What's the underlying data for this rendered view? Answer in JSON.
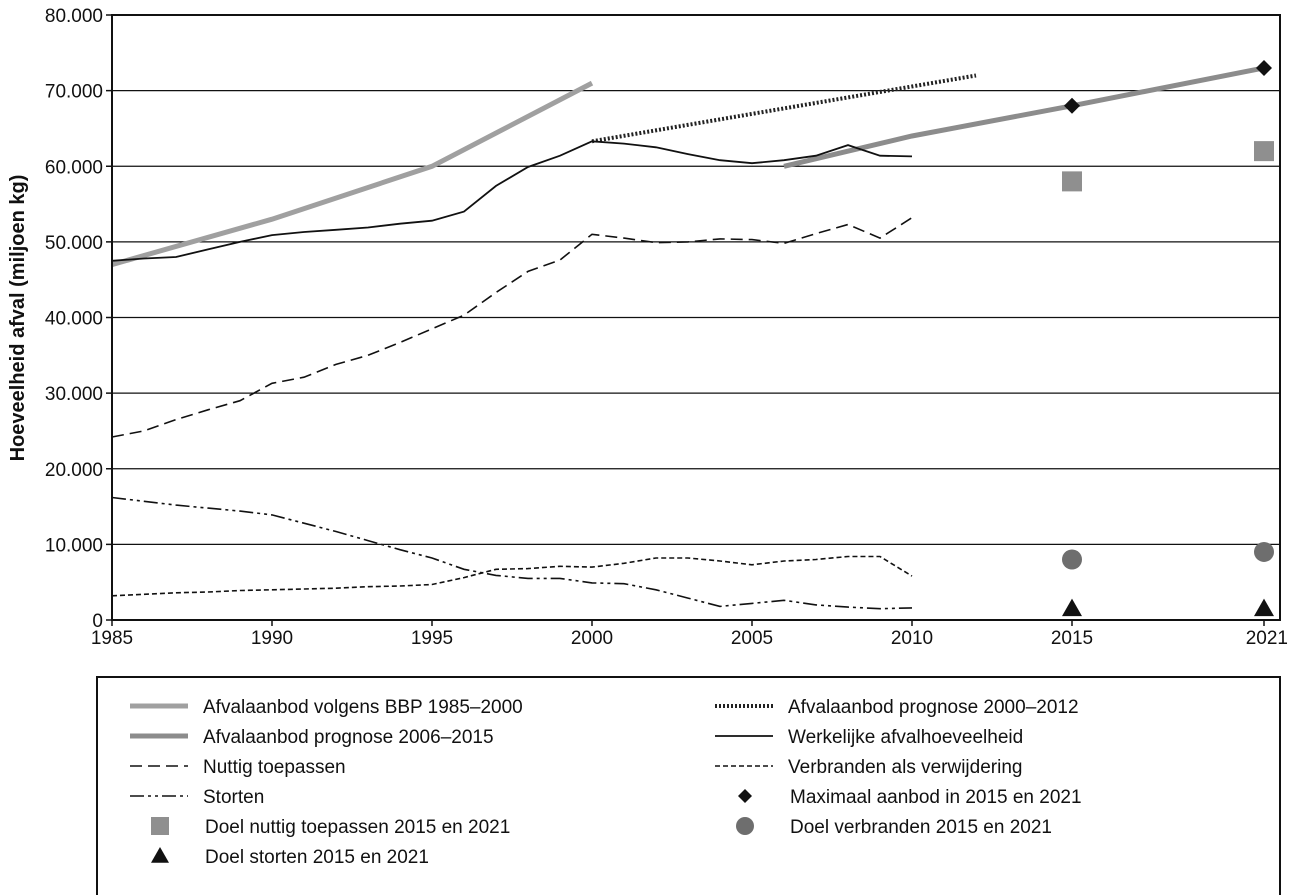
{
  "chart_data": {
    "type": "line",
    "title": "",
    "xlabel": "",
    "ylabel": "Hoeveelheid afval (miljoen kg)",
    "x_ticks": [
      "1985",
      "1990",
      "1995",
      "2000",
      "2005",
      "2010",
      "2015",
      "2021"
    ],
    "y_ticks": [
      "0",
      "10.000",
      "20.000",
      "30.000",
      "40.000",
      "50.000",
      "60.000",
      "70.000",
      "80.000"
    ],
    "ylim": [
      0,
      80000
    ],
    "grid": "horizontal",
    "legend_position": "bottom",
    "series": [
      {
        "name": "Afvalaanbod volgens BBP 1985–2000",
        "style": "thick-solid",
        "color": "#a0a0a0",
        "points": [
          [
            1985,
            47000
          ],
          [
            1990,
            53000
          ],
          [
            1995,
            60000
          ],
          [
            2000,
            71000
          ]
        ]
      },
      {
        "name": "Afvalaanbod prognose 2006–2015",
        "style": "thick-solid",
        "color": "#8c8c8c",
        "points": [
          [
            2006,
            60000
          ],
          [
            2010,
            64000
          ],
          [
            2015,
            68000
          ],
          [
            2021,
            73000
          ]
        ]
      },
      {
        "name": "Nuttig toepassen",
        "style": "dashed",
        "color": "#111111",
        "points": [
          [
            1985,
            24200
          ],
          [
            1986,
            25000
          ],
          [
            1987,
            26500
          ],
          [
            1988,
            27800
          ],
          [
            1989,
            29000
          ],
          [
            1990,
            31300
          ],
          [
            1991,
            32100
          ],
          [
            1992,
            33800
          ],
          [
            1993,
            35000
          ],
          [
            1994,
            36700
          ],
          [
            1995,
            38500
          ],
          [
            1996,
            40300
          ],
          [
            1997,
            43300
          ],
          [
            1998,
            46100
          ],
          [
            1999,
            47600
          ],
          [
            2000,
            51000
          ],
          [
            2001,
            50500
          ],
          [
            2002,
            49900
          ],
          [
            2003,
            50000
          ],
          [
            2004,
            50400
          ],
          [
            2005,
            50300
          ],
          [
            2006,
            49800
          ],
          [
            2007,
            51100
          ],
          [
            2008,
            52300
          ],
          [
            2009,
            50500
          ],
          [
            2010,
            53200
          ]
        ]
      },
      {
        "name": "Storten",
        "style": "dash-dot-dot",
        "color": "#111111",
        "points": [
          [
            1985,
            16200
          ],
          [
            1986,
            15700
          ],
          [
            1987,
            15200
          ],
          [
            1988,
            14800
          ],
          [
            1989,
            14400
          ],
          [
            1990,
            13900
          ],
          [
            1991,
            12800
          ],
          [
            1992,
            11700
          ],
          [
            1993,
            10500
          ],
          [
            1994,
            9300
          ],
          [
            1995,
            8200
          ],
          [
            1996,
            6700
          ],
          [
            1997,
            5900
          ],
          [
            1998,
            5500
          ],
          [
            1999,
            5500
          ],
          [
            2000,
            4900
          ],
          [
            2001,
            4800
          ],
          [
            2002,
            4000
          ],
          [
            2003,
            2900
          ],
          [
            2004,
            1800
          ],
          [
            2005,
            2200
          ],
          [
            2006,
            2600
          ],
          [
            2007,
            2000
          ],
          [
            2008,
            1700
          ],
          [
            2009,
            1500
          ],
          [
            2010,
            1600
          ]
        ]
      },
      {
        "name": "Afvalaanbod prognose 2000–2012",
        "style": "dotted-thick",
        "color": "#222222",
        "points": [
          [
            2000,
            63300
          ],
          [
            2012,
            72000
          ]
        ]
      },
      {
        "name": "Werkelijke afvalhoeveelheid",
        "style": "solid",
        "color": "#111111",
        "points": [
          [
            1985,
            47500
          ],
          [
            1986,
            47800
          ],
          [
            1987,
            48000
          ],
          [
            1988,
            49000
          ],
          [
            1989,
            50000
          ],
          [
            1990,
            50900
          ],
          [
            1991,
            51300
          ],
          [
            1992,
            51600
          ],
          [
            1993,
            51900
          ],
          [
            1994,
            52400
          ],
          [
            1995,
            52800
          ],
          [
            1996,
            54000
          ],
          [
            1997,
            57400
          ],
          [
            1998,
            59900
          ],
          [
            1999,
            61400
          ],
          [
            2000,
            63300
          ],
          [
            2001,
            63000
          ],
          [
            2002,
            62500
          ],
          [
            2003,
            61600
          ],
          [
            2004,
            60800
          ],
          [
            2005,
            60400
          ],
          [
            2006,
            60800
          ],
          [
            2007,
            61400
          ],
          [
            2008,
            62800
          ],
          [
            2009,
            61400
          ],
          [
            2010,
            61300
          ]
        ]
      },
      {
        "name": "Verbranden als verwijdering",
        "style": "short-dashed",
        "color": "#111111",
        "points": [
          [
            1985,
            3200
          ],
          [
            1986,
            3400
          ],
          [
            1987,
            3600
          ],
          [
            1988,
            3700
          ],
          [
            1989,
            3900
          ],
          [
            1990,
            4000
          ],
          [
            1991,
            4100
          ],
          [
            1992,
            4200
          ],
          [
            1993,
            4400
          ],
          [
            1994,
            4500
          ],
          [
            1995,
            4700
          ],
          [
            1996,
            5600
          ],
          [
            1997,
            6700
          ],
          [
            1998,
            6800
          ],
          [
            1999,
            7100
          ],
          [
            2000,
            7000
          ],
          [
            2001,
            7500
          ],
          [
            2002,
            8200
          ],
          [
            2003,
            8200
          ],
          [
            2004,
            7800
          ],
          [
            2005,
            7300
          ],
          [
            2006,
            7800
          ],
          [
            2007,
            8000
          ],
          [
            2008,
            8400
          ],
          [
            2009,
            8400
          ],
          [
            2010,
            5800
          ]
        ]
      },
      {
        "name": "Maximaal aanbod in 2015 en 2021",
        "style": "marker-diamond",
        "color": "#111111",
        "points": [
          [
            2015,
            68000
          ],
          [
            2021,
            73000
          ]
        ]
      },
      {
        "name": "Doel nuttig toepassen 2015 en 2021",
        "style": "marker-square",
        "color": "#8f8f8f",
        "points": [
          [
            2015,
            58000
          ],
          [
            2021,
            62000
          ]
        ]
      },
      {
        "name": "Doel verbranden 2015 en 2021",
        "style": "marker-circle",
        "color": "#6e6e6e",
        "points": [
          [
            2015,
            8000
          ],
          [
            2021,
            9000
          ]
        ]
      },
      {
        "name": "Doel storten 2015 en 2021",
        "style": "marker-triangle",
        "color": "#111111",
        "points": [
          [
            2015,
            1500
          ],
          [
            2021,
            1500
          ]
        ]
      }
    ]
  }
}
